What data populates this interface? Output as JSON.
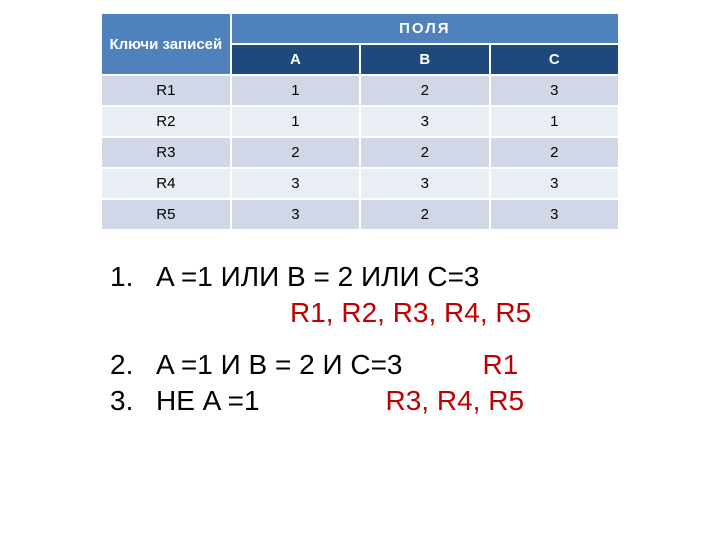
{
  "table": {
    "header_key": "Ключи записей",
    "header_fields": "ПОЛЯ",
    "columns": [
      "A",
      "B",
      "C"
    ],
    "rows": [
      {
        "key": "R1",
        "cells": [
          "1",
          "2",
          "3"
        ]
      },
      {
        "key": "R2",
        "cells": [
          "1",
          "3",
          "1"
        ]
      },
      {
        "key": "R3",
        "cells": [
          "2",
          "2",
          "2"
        ]
      },
      {
        "key": "R4",
        "cells": [
          "3",
          "3",
          "3"
        ]
      },
      {
        "key": "R5",
        "cells": [
          "3",
          "2",
          "3"
        ]
      }
    ],
    "colors": {
      "header_top_bg": "#4f81bd",
      "header_sub_bg": "#1f497d",
      "header_fg": "#ffffff",
      "row_odd_bg": "#d0d8e8",
      "row_even_bg": "#e9edf4",
      "border": "#ffffff"
    }
  },
  "queries": {
    "q1_num": "1.",
    "q1_text": "A =1 ИЛИ B = 2 ИЛИ C=3",
    "q1_ans": "R1, R2, R3, R4, R5",
    "q2_num": "2.",
    "q2_text": "A =1 И B = 2 И C=3",
    "q2_ans": "R1",
    "q3_num": "3.",
    "q3_text": "НЕ A =1",
    "q3_ans": "R3, R4, R5"
  },
  "style": {
    "query_color": "#000000",
    "answer_color": "#c00000",
    "query_fontsize": 28
  }
}
